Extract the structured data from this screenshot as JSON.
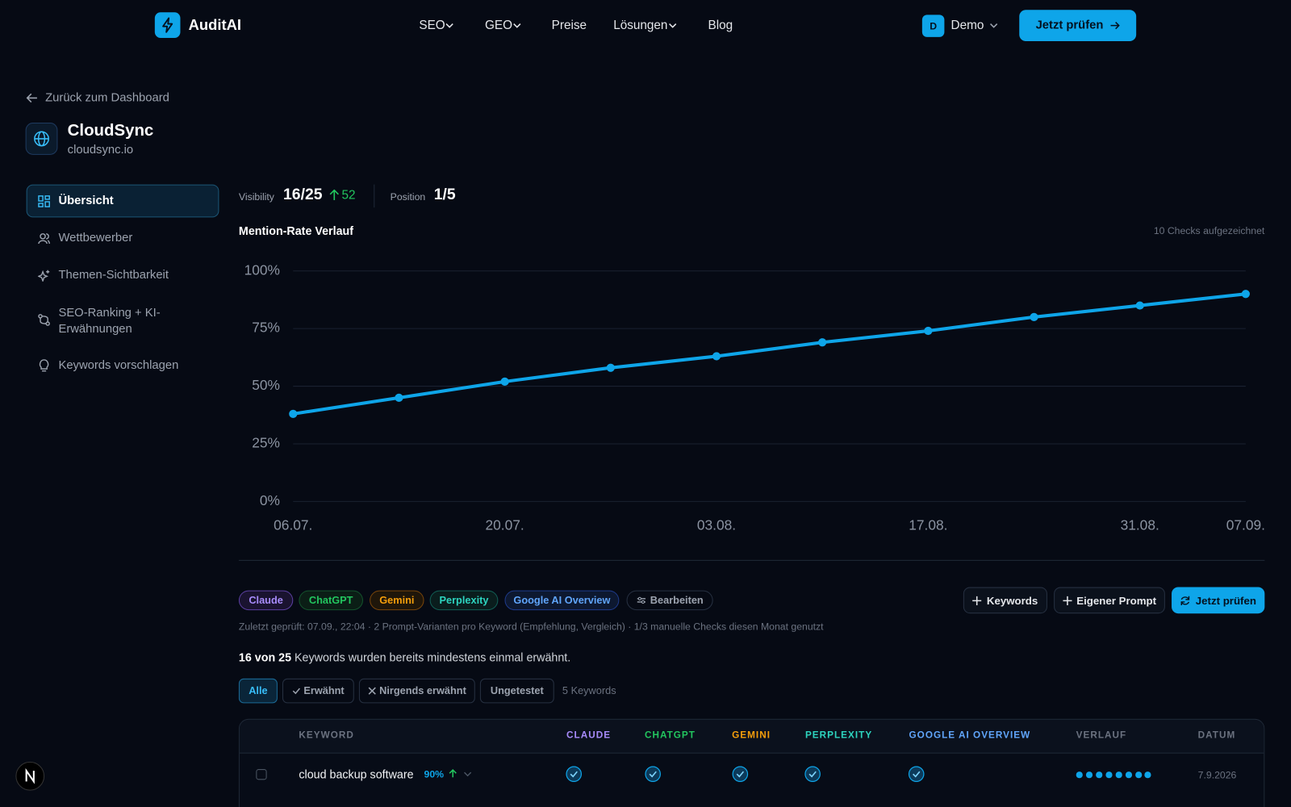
{
  "nav": {
    "brand": "AuditAI",
    "links": [
      "SEO",
      "GEO",
      "Preise",
      "Lösungen",
      "Blog"
    ],
    "user_initial": "D",
    "user": "Demo",
    "cta": "Jetzt prüfen"
  },
  "sidebar": {
    "back": "Zurück zum Dashboard",
    "project": "CloudSync",
    "domain": "cloudsync.io",
    "items": [
      "Übersicht",
      "Wettbewerber",
      "Themen-Sichtbarkeit",
      "SEO-Ranking + KI-Erwähnungen",
      "Keywords vorschlagen"
    ]
  },
  "stats": {
    "visibility_label": "Visibility",
    "visibility": "16/25",
    "change": "52",
    "position_label": "Position",
    "position": "1/5"
  },
  "chart_data": {
    "type": "line",
    "title": "Mention-Rate Verlauf",
    "subtitle": "10 Checks aufgezeichnet",
    "categories": [
      "06.07.",
      null,
      "20.07.",
      null,
      "03.08.",
      null,
      "17.08.",
      null,
      "31.08.",
      "07.09."
    ],
    "values": [
      38,
      45,
      52,
      58,
      63,
      69,
      74,
      80,
      85,
      90
    ],
    "color": "#0ea5e9",
    "ylim": [
      0,
      100
    ],
    "yticks": [
      {
        "value": 0,
        "label": "0%"
      },
      {
        "value": 25,
        "label": "25%"
      },
      {
        "value": 50,
        "label": "50%"
      },
      {
        "value": 75,
        "label": "75%"
      },
      {
        "value": 100,
        "label": "100%"
      }
    ],
    "grid": true
  },
  "engines": {
    "chips": [
      "Claude",
      "ChatGPT",
      "Gemini",
      "Perplexity",
      "Google AI Overview"
    ],
    "edit": "Bearbeiten"
  },
  "actions": [
    "Keywords",
    "Eigener Prompt",
    "Jetzt prüfen"
  ],
  "status": "Zuletzt geprüft: 07.09., 22:04 · 2 Prompt-Varianten pro Keyword (Empfehlung, Vergleich) · 1/3 manuelle Checks diesen Monat genutzt",
  "summary": {
    "count": "16 von 25",
    "text": "Keywords wurden bereits mindestens einmal erwähnt."
  },
  "filters": {
    "options": [
      "Alle",
      "Erwähnt",
      "Nirgends erwähnt",
      "Ungetestet"
    ],
    "count": "5 Keywords"
  },
  "table": {
    "columns": [
      "KEYWORD",
      "CLAUDE",
      "CHATGPT",
      "GEMINI",
      "PERPLEXITY",
      "GOOGLE AI OVERVIEW",
      "VERLAUF",
      "DATUM"
    ],
    "rows": [
      {
        "keyword": "cloud backup software",
        "rate": "90%",
        "date": "7.9.2026"
      }
    ]
  }
}
